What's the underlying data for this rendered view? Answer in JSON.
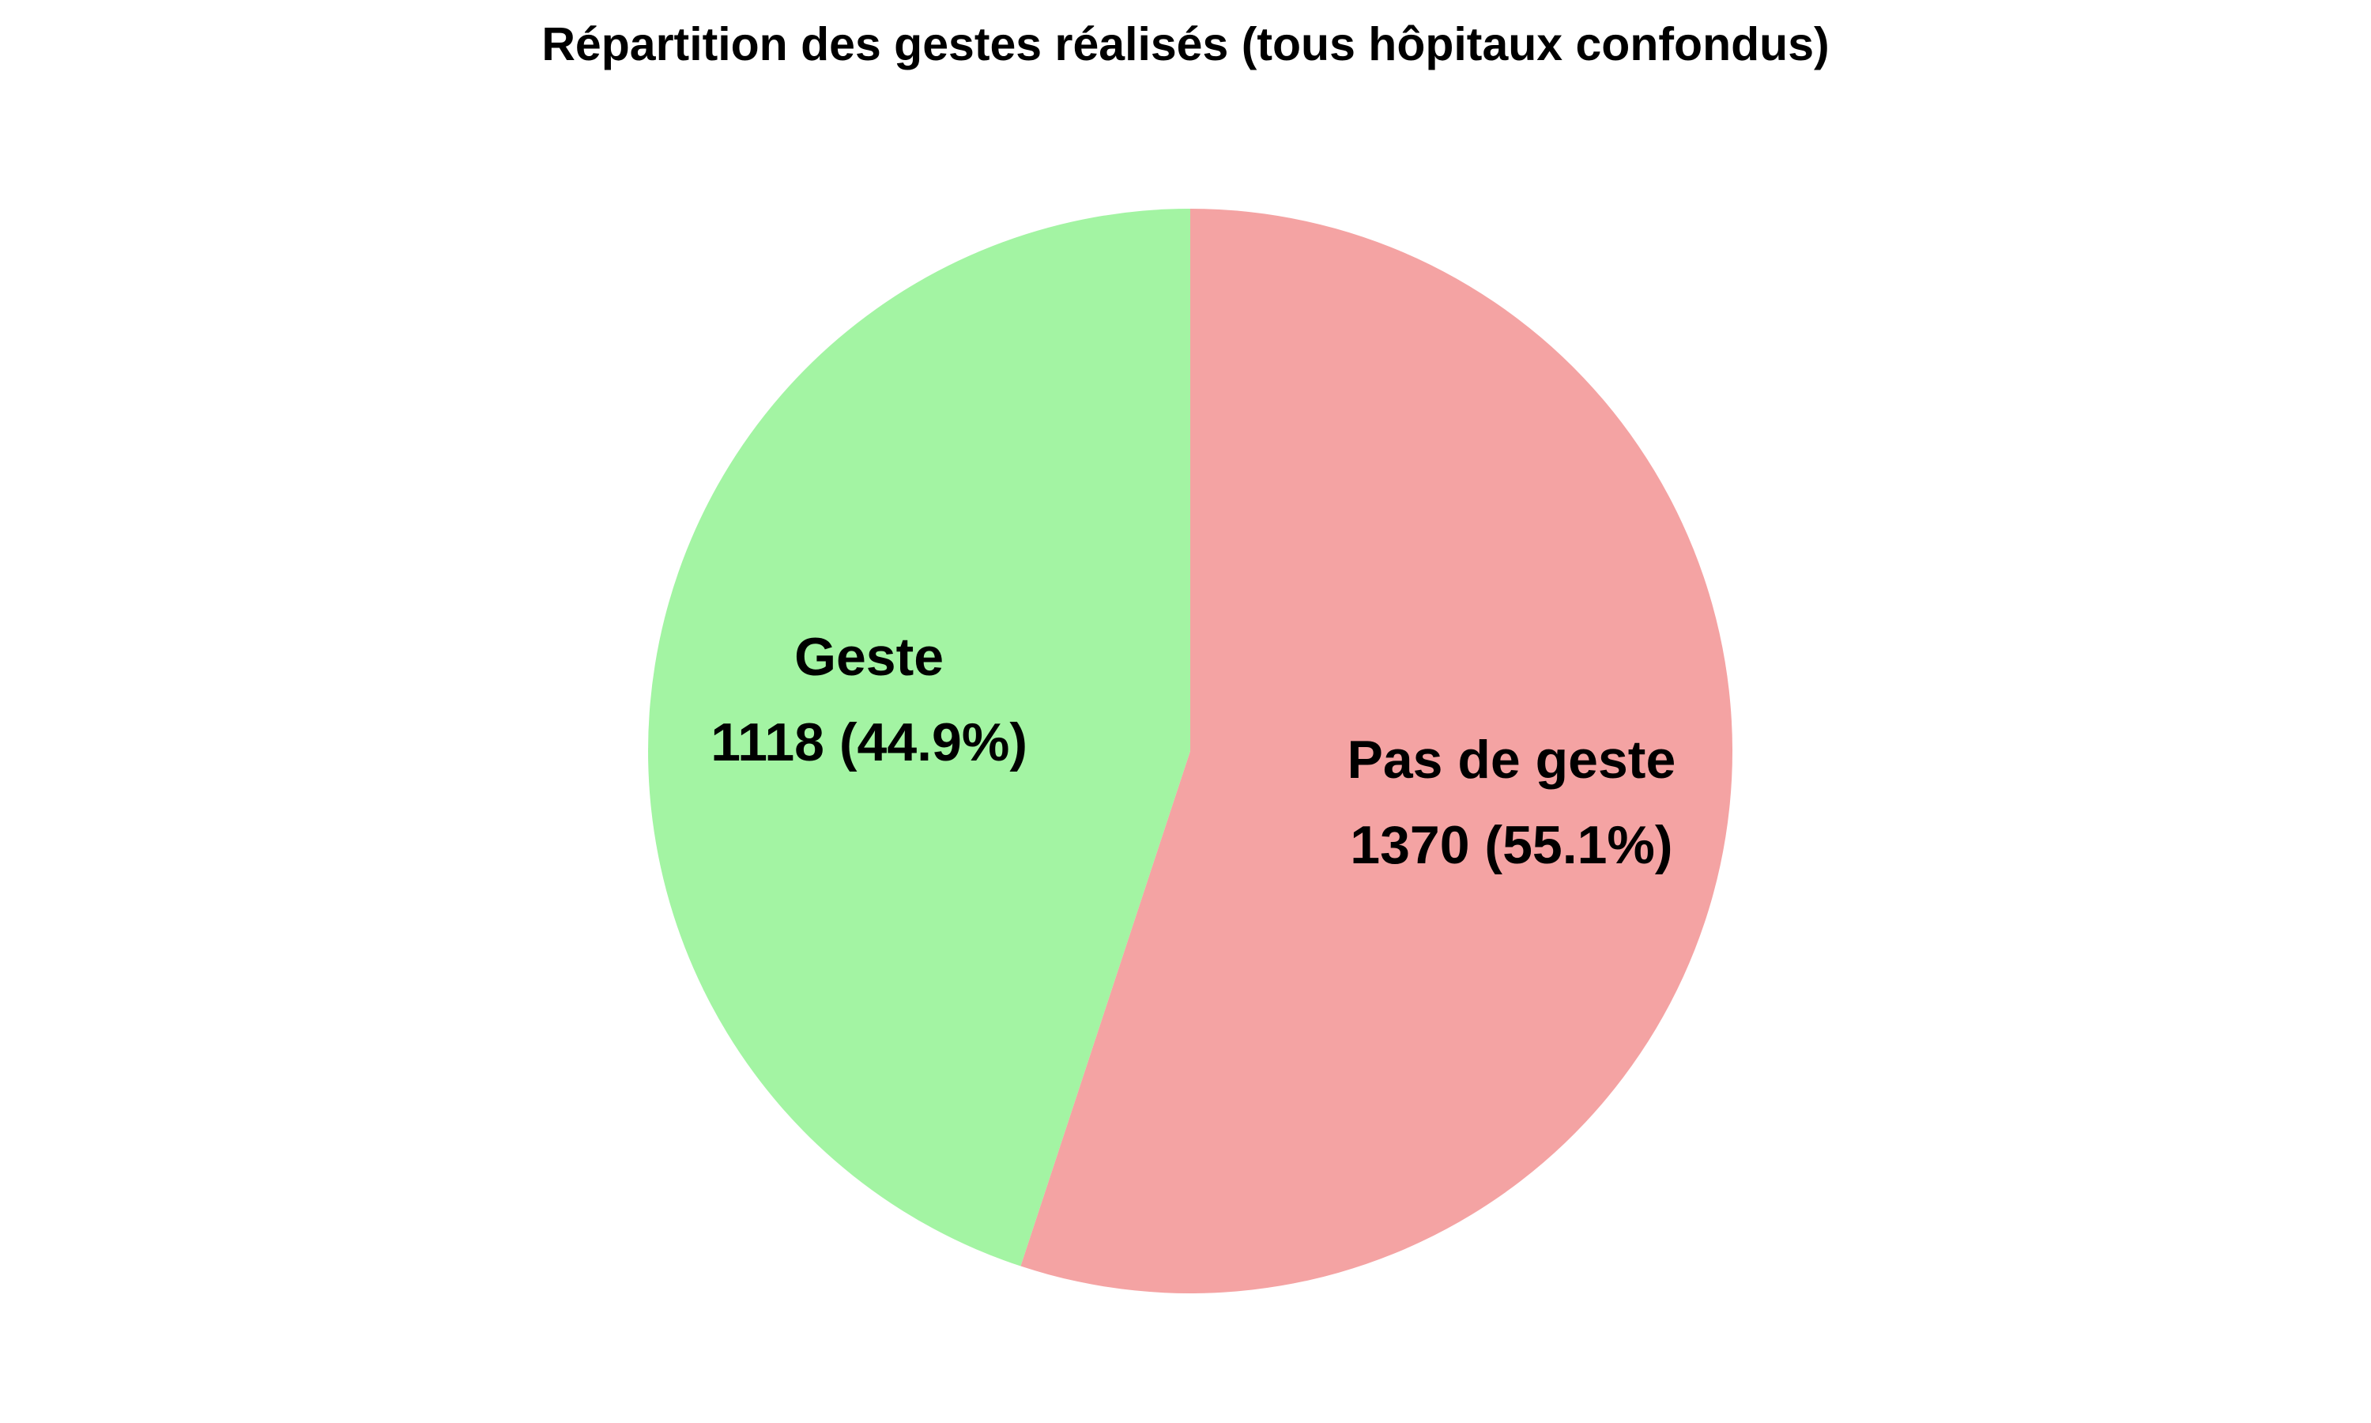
{
  "chart_data": {
    "type": "pie",
    "title": "Répartition des gestes réalisés (tous hôpitaux confondus)",
    "start_angle_deg": 90,
    "direction": "clockwise",
    "slices": [
      {
        "label": "Pas de geste",
        "value": 1370,
        "percent": 55.1,
        "value_text": "1370 (55.1%)",
        "color": "#f4a3a3"
      },
      {
        "label": "Geste",
        "value": 1118,
        "percent": 44.9,
        "value_text": "1118 (44.9%)",
        "color": "#a3f4a3"
      }
    ]
  }
}
